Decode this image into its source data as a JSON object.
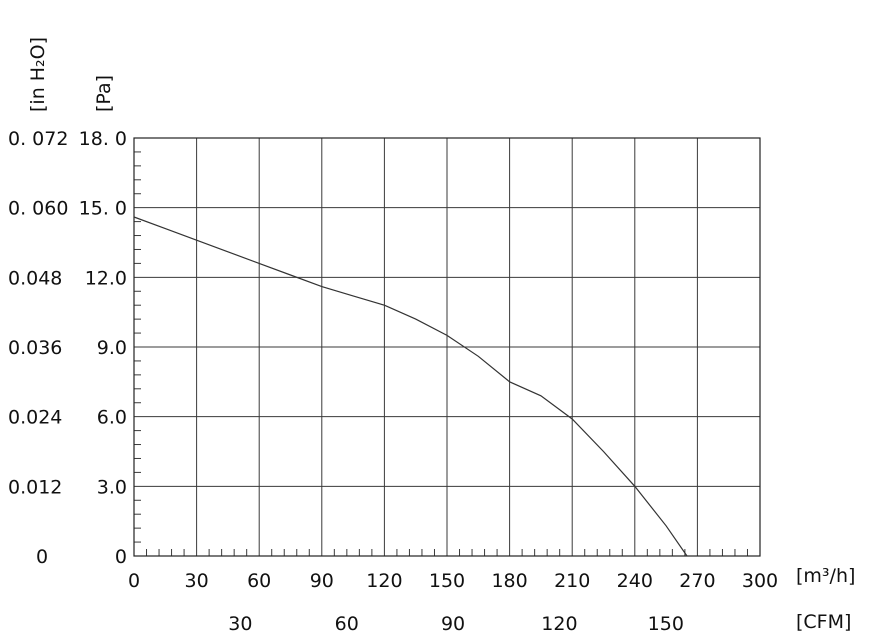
{
  "chart_data": {
    "type": "line",
    "title": "",
    "xlabel": "[m³/h]",
    "xlabel_secondary": "[CFM]",
    "ylabel": "[Pa]",
    "ylabel_secondary": "[in H₂O]",
    "xlim": [
      0,
      300
    ],
    "ylim": [
      0,
      18
    ],
    "grid": true,
    "x_ticks": [
      "0",
      "30",
      "60",
      "90",
      "120",
      "150",
      "180",
      "210",
      "240",
      "270",
      "300"
    ],
    "x_ticks_cfm": [
      {
        "value": 30,
        "label": "30"
      },
      {
        "value": 60,
        "label": "60"
      },
      {
        "value": 90,
        "label": "90"
      },
      {
        "value": 120,
        "label": "120"
      },
      {
        "value": 150,
        "label": "150"
      }
    ],
    "y_ticks_pa": [
      "0",
      "3.0",
      "6.0",
      "9.0",
      "12.0",
      "15. 0",
      "18. 0"
    ],
    "y_ticks_inh2o": [
      "0",
      "0.012",
      "0.024",
      "0.036",
      "0.048",
      "0. 060",
      "0. 072"
    ],
    "series": [
      {
        "x": [
          0,
          15,
          30,
          45,
          60,
          75,
          90,
          105,
          120,
          135,
          150,
          165,
          180,
          195,
          210,
          225,
          240,
          255,
          265
        ],
        "y": [
          14.6,
          14.1,
          13.6,
          13.1,
          12.6,
          12.1,
          11.6,
          11.2,
          10.8,
          10.2,
          9.5,
          8.6,
          7.5,
          6.9,
          5.9,
          4.5,
          3.0,
          1.3,
          0.0
        ],
        "color": "#333333"
      }
    ]
  }
}
